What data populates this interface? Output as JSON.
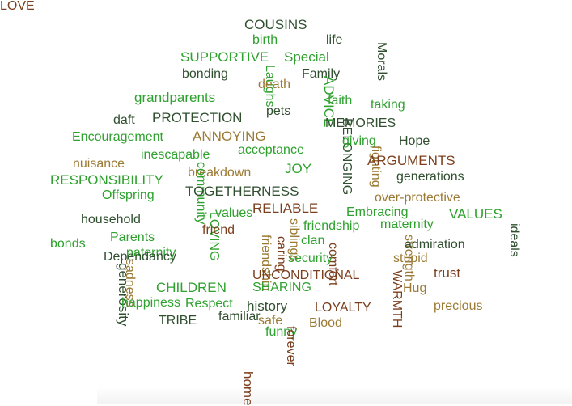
{
  "colors": {
    "green": "#2ea12e",
    "dark": "#2f4f2f",
    "brown": "#7b3f1e",
    "olive": "#9b7a35"
  },
  "words": [
    {
      "text": "COUSINS",
      "color": "dark",
      "vertical": false
    },
    {
      "text": "birth",
      "color": "green",
      "vertical": false
    },
    {
      "text": "life",
      "color": "dark",
      "vertical": false
    },
    {
      "text": "SUPPORTIVE",
      "color": "green",
      "vertical": false
    },
    {
      "text": "Special",
      "color": "green",
      "vertical": false
    },
    {
      "text": "Morals",
      "color": "dark",
      "vertical": true
    },
    {
      "text": "bonding",
      "color": "dark",
      "vertical": false
    },
    {
      "text": "Laughs",
      "color": "green",
      "vertical": true
    },
    {
      "text": "Family",
      "color": "dark",
      "vertical": false
    },
    {
      "text": "death",
      "color": "olive",
      "vertical": false
    },
    {
      "text": "grandparents",
      "color": "green",
      "vertical": false
    },
    {
      "text": "ADVICE",
      "color": "green",
      "vertical": true
    },
    {
      "text": "faith",
      "color": "green",
      "vertical": false
    },
    {
      "text": "taking",
      "color": "green",
      "vertical": false
    },
    {
      "text": "daft",
      "color": "dark",
      "vertical": false
    },
    {
      "text": "PROTECTION",
      "color": "dark",
      "vertical": false
    },
    {
      "text": "pets",
      "color": "dark",
      "vertical": false
    },
    {
      "text": "MEMORIES",
      "color": "dark",
      "vertical": false
    },
    {
      "text": "Encouragement",
      "color": "green",
      "vertical": false
    },
    {
      "text": "ANNOYING",
      "color": "olive",
      "vertical": false
    },
    {
      "text": "BELONGING",
      "color": "dark",
      "vertical": true
    },
    {
      "text": "giving",
      "color": "green",
      "vertical": false
    },
    {
      "text": "Hope",
      "color": "dark",
      "vertical": false
    },
    {
      "text": "acceptance",
      "color": "green",
      "vertical": false
    },
    {
      "text": "fighting",
      "color": "olive",
      "vertical": true
    },
    {
      "text": "nuisance",
      "color": "olive",
      "vertical": false
    },
    {
      "text": "inescapable",
      "color": "green",
      "vertical": false
    },
    {
      "text": "ARGUMENTS",
      "color": "brown",
      "vertical": false
    },
    {
      "text": "RESPONSIBILITY",
      "color": "green",
      "vertical": false
    },
    {
      "text": "breakdown",
      "color": "olive",
      "vertical": false
    },
    {
      "text": "JOY",
      "color": "green",
      "vertical": false
    },
    {
      "text": "generations",
      "color": "dark",
      "vertical": false
    },
    {
      "text": "community",
      "color": "green",
      "vertical": true
    },
    {
      "text": "Offspring",
      "color": "green",
      "vertical": false
    },
    {
      "text": "TOGETHERNESS",
      "color": "dark",
      "vertical": false
    },
    {
      "text": "over-protective",
      "color": "olive",
      "vertical": false
    },
    {
      "text": "values",
      "color": "green",
      "vertical": false
    },
    {
      "text": "RELIABLE",
      "color": "brown",
      "vertical": false
    },
    {
      "text": "Embracing",
      "color": "green",
      "vertical": false
    },
    {
      "text": "VALUES",
      "color": "green",
      "vertical": false
    },
    {
      "text": "household",
      "color": "dark",
      "vertical": false
    },
    {
      "text": "LOVING",
      "color": "green",
      "vertical": true
    },
    {
      "text": "siblings",
      "color": "olive",
      "vertical": true
    },
    {
      "text": "friendship",
      "color": "green",
      "vertical": false
    },
    {
      "text": "maternity",
      "color": "green",
      "vertical": false
    },
    {
      "text": "friend",
      "color": "brown",
      "vertical": false
    },
    {
      "text": "ideals",
      "color": "dark",
      "vertical": true
    },
    {
      "text": "Parents",
      "color": "green",
      "vertical": false
    },
    {
      "text": "bonds",
      "color": "green",
      "vertical": false
    },
    {
      "text": "friendship",
      "color": "olive",
      "vertical": true
    },
    {
      "text": "caring",
      "color": "brown",
      "vertical": true
    },
    {
      "text": "clan",
      "color": "green",
      "vertical": false
    },
    {
      "text": "comfort",
      "color": "brown",
      "vertical": true
    },
    {
      "text": "strength",
      "color": "olive",
      "vertical": true
    },
    {
      "text": "paternity",
      "color": "green",
      "vertical": false
    },
    {
      "text": "security",
      "color": "green",
      "vertical": false
    },
    {
      "text": "stupid",
      "color": "olive",
      "vertical": false
    },
    {
      "text": "Dependancy",
      "color": "dark",
      "vertical": false
    },
    {
      "text": "sadness",
      "color": "olive",
      "vertical": true
    },
    {
      "text": "generosity",
      "color": "dark",
      "vertical": true
    },
    {
      "text": "UNCONDITIONAL",
      "color": "brown",
      "vertical": false
    },
    {
      "text": "admiration",
      "color": "dark",
      "vertical": false
    },
    {
      "text": "WARMTH",
      "color": "brown",
      "vertical": true
    },
    {
      "text": "trust",
      "color": "brown",
      "vertical": false
    },
    {
      "text": "CHILDREN",
      "color": "green",
      "vertical": false
    },
    {
      "text": "SHARING",
      "color": "green",
      "vertical": false
    },
    {
      "text": "Hug",
      "color": "olive",
      "vertical": false
    },
    {
      "text": "happiness",
      "color": "green",
      "vertical": false
    },
    {
      "text": "Respect",
      "color": "green",
      "vertical": false
    },
    {
      "text": "history",
      "color": "dark",
      "vertical": false
    },
    {
      "text": "LOYALTY",
      "color": "brown",
      "vertical": false
    },
    {
      "text": "precious",
      "color": "olive",
      "vertical": false
    },
    {
      "text": "TRIBE",
      "color": "dark",
      "vertical": false
    },
    {
      "text": "familiar",
      "color": "dark",
      "vertical": false
    },
    {
      "text": "safe",
      "color": "olive",
      "vertical": false
    },
    {
      "text": "Blood",
      "color": "olive",
      "vertical": false
    },
    {
      "text": "funny",
      "color": "green",
      "vertical": false
    },
    {
      "text": "forever",
      "color": "brown",
      "vertical": true
    },
    {
      "text": "home",
      "color": "brown",
      "vertical": true
    },
    {
      "text": "LOVE",
      "color": "brown",
      "vertical": false
    }
  ]
}
